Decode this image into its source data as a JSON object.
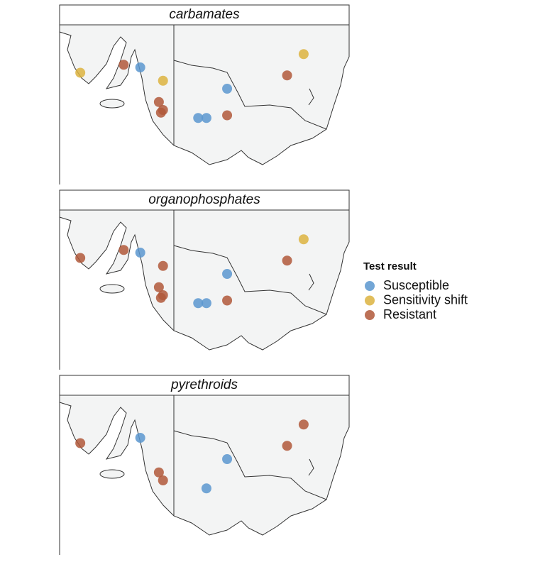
{
  "panels": [
    {
      "title": "carbamates",
      "points": [
        {
          "lon": 137.5,
          "lat": -35.3,
          "result": 1
        },
        {
          "lon": 139.6,
          "lat": -35.0,
          "result": 2
        },
        {
          "lon": 140.4,
          "lat": -35.1,
          "result": 0
        },
        {
          "lon": 141.5,
          "lat": -35.6,
          "result": 1
        },
        {
          "lon": 141.3,
          "lat": -36.4,
          "result": 2
        },
        {
          "lon": 141.5,
          "lat": -36.7,
          "result": 2
        },
        {
          "lon": 141.4,
          "lat": -36.8,
          "result": 2
        },
        {
          "lon": 144.6,
          "lat": -35.9,
          "result": 0
        },
        {
          "lon": 143.2,
          "lat": -37.0,
          "result": 0
        },
        {
          "lon": 143.6,
          "lat": -37.0,
          "result": 0
        },
        {
          "lon": 144.6,
          "lat": -36.9,
          "result": 2
        },
        {
          "lon": 147.5,
          "lat": -35.4,
          "result": 2
        },
        {
          "lon": 148.3,
          "lat": -34.6,
          "result": 1
        }
      ]
    },
    {
      "title": "organophosphates",
      "points": [
        {
          "lon": 137.5,
          "lat": -35.3,
          "result": 2
        },
        {
          "lon": 139.6,
          "lat": -35.0,
          "result": 2
        },
        {
          "lon": 140.4,
          "lat": -35.1,
          "result": 0
        },
        {
          "lon": 141.5,
          "lat": -35.6,
          "result": 2
        },
        {
          "lon": 141.3,
          "lat": -36.4,
          "result": 2
        },
        {
          "lon": 141.5,
          "lat": -36.7,
          "result": 2
        },
        {
          "lon": 141.4,
          "lat": -36.8,
          "result": 2
        },
        {
          "lon": 144.6,
          "lat": -35.9,
          "result": 0
        },
        {
          "lon": 143.2,
          "lat": -37.0,
          "result": 0
        },
        {
          "lon": 143.6,
          "lat": -37.0,
          "result": 0
        },
        {
          "lon": 144.6,
          "lat": -36.9,
          "result": 2
        },
        {
          "lon": 147.5,
          "lat": -35.4,
          "result": 2
        },
        {
          "lon": 148.3,
          "lat": -34.6,
          "result": 1
        }
      ]
    },
    {
      "title": "pyrethroids",
      "points": [
        {
          "lon": 137.5,
          "lat": -35.3,
          "result": 2
        },
        {
          "lon": 140.4,
          "lat": -35.1,
          "result": 0
        },
        {
          "lon": 141.3,
          "lat": -36.4,
          "result": 2
        },
        {
          "lon": 141.5,
          "lat": -36.7,
          "result": 2
        },
        {
          "lon": 144.6,
          "lat": -35.9,
          "result": 0
        },
        {
          "lon": 143.6,
          "lat": -37.0,
          "result": 0
        },
        {
          "lon": 147.5,
          "lat": -35.4,
          "result": 2
        },
        {
          "lon": 148.3,
          "lat": -34.6,
          "result": 2
        }
      ]
    }
  ],
  "legend": {
    "title": "Test result",
    "items": [
      {
        "label": "Susceptible",
        "color": "#5b96cf"
      },
      {
        "label": "Sensitivity shift",
        "color": "#dcb33f"
      },
      {
        "label": "Resistant",
        "color": "#b0583a"
      }
    ]
  }
}
